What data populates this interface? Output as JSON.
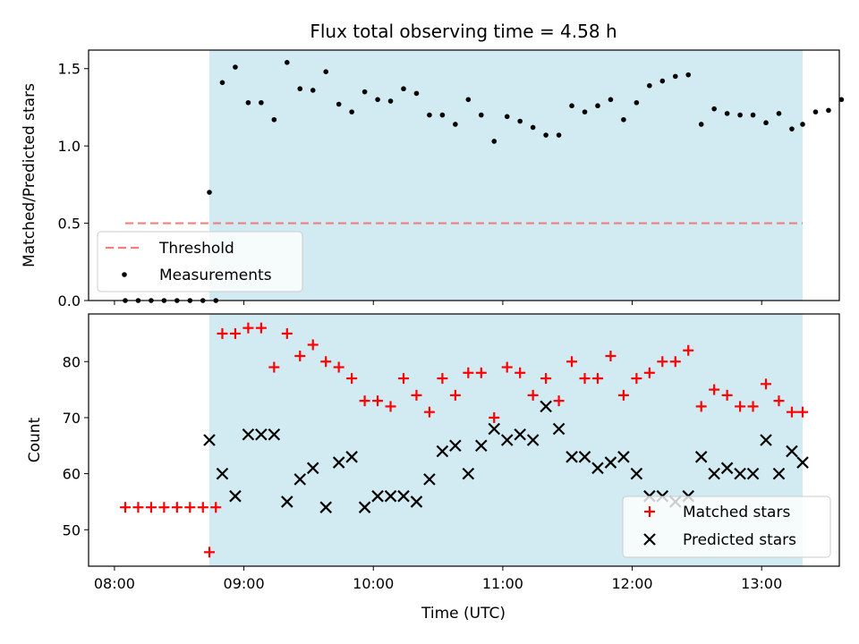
{
  "chart_data": [
    {
      "type": "scatter",
      "title": "Flux total observing time = 4.58 h",
      "xlabel": "",
      "ylabel": "Matched/Predicted stars",
      "ylim": [
        0,
        1.62
      ],
      "xlim": [
        "07:48",
        "13:36"
      ],
      "yticks": [
        "0.0",
        "0.5",
        "1.0",
        "1.5"
      ],
      "grid": false,
      "legend_position": "lower-left",
      "shaded_interval": [
        "08:44",
        "13:19"
      ],
      "shade_color": "#add8e6",
      "threshold": {
        "name": "Threshold",
        "value": 0.5,
        "x_range": [
          "08:05",
          "13:19"
        ],
        "color": "#f08080"
      },
      "series": [
        {
          "name": "Measurements",
          "color": "#000000",
          "x": [
            "08:05",
            "08:11",
            "08:17",
            "08:23",
            "08:29",
            "08:35",
            "08:41",
            "08:47",
            "08:44",
            "08:50",
            "08:56",
            "09:02",
            "09:08",
            "09:14",
            "09:20",
            "09:26",
            "09:32",
            "09:38",
            "09:44",
            "09:50",
            "09:56",
            "10:02",
            "10:08",
            "10:14",
            "10:20",
            "10:26",
            "10:32",
            "10:38",
            "10:44",
            "10:50",
            "10:56",
            "11:02",
            "11:08",
            "11:14",
            "11:20",
            "11:26",
            "11:32",
            "11:38",
            "11:44",
            "11:50",
            "11:56",
            "12:02",
            "12:08",
            "12:14",
            "12:20",
            "12:26",
            "12:32",
            "12:38",
            "12:44",
            "12:50",
            "12:56",
            "13:02",
            "13:08",
            "13:14",
            "13:19",
            "13:25",
            "13:31",
            "13:37"
          ],
          "y": [
            0,
            0,
            0,
            0,
            0,
            0,
            0,
            0,
            0.7,
            1.41,
            1.51,
            1.28,
            1.28,
            1.17,
            1.54,
            1.37,
            1.36,
            1.48,
            1.27,
            1.22,
            1.35,
            1.3,
            1.29,
            1.37,
            1.34,
            1.2,
            1.2,
            1.14,
            1.3,
            1.2,
            1.03,
            1.19,
            1.16,
            1.12,
            1.07,
            1.07,
            1.26,
            1.22,
            1.26,
            1.3,
            1.17,
            1.28,
            1.39,
            1.42,
            1.45,
            1.46,
            1.14,
            1.24,
            1.21,
            1.2,
            1.2,
            1.15,
            1.21,
            1.11,
            1.14,
            1.22,
            1.23,
            1.3
          ]
        }
      ]
    },
    {
      "type": "scatter",
      "xlabel": "Time (UTC)",
      "ylabel": "Count",
      "ylim": [
        43.5,
        88.5
      ],
      "xlim": [
        "07:48",
        "13:36"
      ],
      "xticks": [
        "08:00",
        "09:00",
        "10:00",
        "11:00",
        "12:00",
        "13:00"
      ],
      "yticks": [
        "50",
        "60",
        "70",
        "80"
      ],
      "grid": false,
      "legend_position": "lower-right",
      "shaded_interval": [
        "08:44",
        "13:19"
      ],
      "series": [
        {
          "name": "Matched stars",
          "marker": "plus",
          "color": "#ff0000",
          "x": [
            "08:05",
            "08:11",
            "08:17",
            "08:23",
            "08:29",
            "08:35",
            "08:41",
            "08:47",
            "08:44",
            "08:50",
            "08:56",
            "09:02",
            "09:08",
            "09:14",
            "09:20",
            "09:26",
            "09:32",
            "09:38",
            "09:44",
            "09:50",
            "09:56",
            "10:02",
            "10:08",
            "10:14",
            "10:20",
            "10:26",
            "10:32",
            "10:38",
            "10:44",
            "10:50",
            "10:56",
            "11:02",
            "11:08",
            "11:14",
            "11:20",
            "11:26",
            "11:32",
            "11:38",
            "11:44",
            "11:50",
            "11:56",
            "12:02",
            "12:08",
            "12:14",
            "12:20",
            "12:26",
            "12:32",
            "12:38",
            "12:44",
            "12:50",
            "12:56",
            "13:02",
            "13:08",
            "13:14",
            "13:19"
          ],
          "y": [
            54,
            54,
            54,
            54,
            54,
            54,
            54,
            54,
            46,
            85,
            85,
            86,
            86,
            79,
            85,
            81,
            83,
            80,
            79,
            77,
            73,
            73,
            72,
            77,
            74,
            71,
            77,
            74,
            78,
            78,
            70,
            79,
            78,
            74,
            77,
            73,
            80,
            77,
            77,
            81,
            74,
            77,
            78,
            80,
            80,
            82,
            72,
            75,
            74,
            72,
            72,
            76,
            73,
            71,
            71
          ]
        },
        {
          "name": "Predicted stars",
          "marker": "x",
          "color": "#000000",
          "x": [
            "08:44",
            "08:50",
            "08:56",
            "09:02",
            "09:08",
            "09:14",
            "09:20",
            "09:26",
            "09:32",
            "09:38",
            "09:44",
            "09:50",
            "09:56",
            "10:02",
            "10:08",
            "10:14",
            "10:20",
            "10:26",
            "10:32",
            "10:38",
            "10:44",
            "10:50",
            "10:56",
            "11:02",
            "11:08",
            "11:14",
            "11:20",
            "11:26",
            "11:32",
            "11:38",
            "11:44",
            "11:50",
            "11:56",
            "12:02",
            "12:08",
            "12:14",
            "12:20",
            "12:26",
            "12:32",
            "12:38",
            "12:44",
            "12:50",
            "12:56",
            "13:02",
            "13:08",
            "13:14",
            "13:19"
          ],
          "y": [
            66,
            60,
            56,
            67,
            67,
            67,
            55,
            59,
            61,
            54,
            62,
            63,
            54,
            56,
            56,
            56,
            55,
            59,
            64,
            65,
            60,
            65,
            68,
            66,
            67,
            66,
            72,
            68,
            63,
            63,
            61,
            62,
            63,
            60,
            56,
            56,
            55,
            56,
            63,
            60,
            61,
            60,
            60,
            66,
            60,
            64,
            62
          ]
        }
      ]
    }
  ]
}
